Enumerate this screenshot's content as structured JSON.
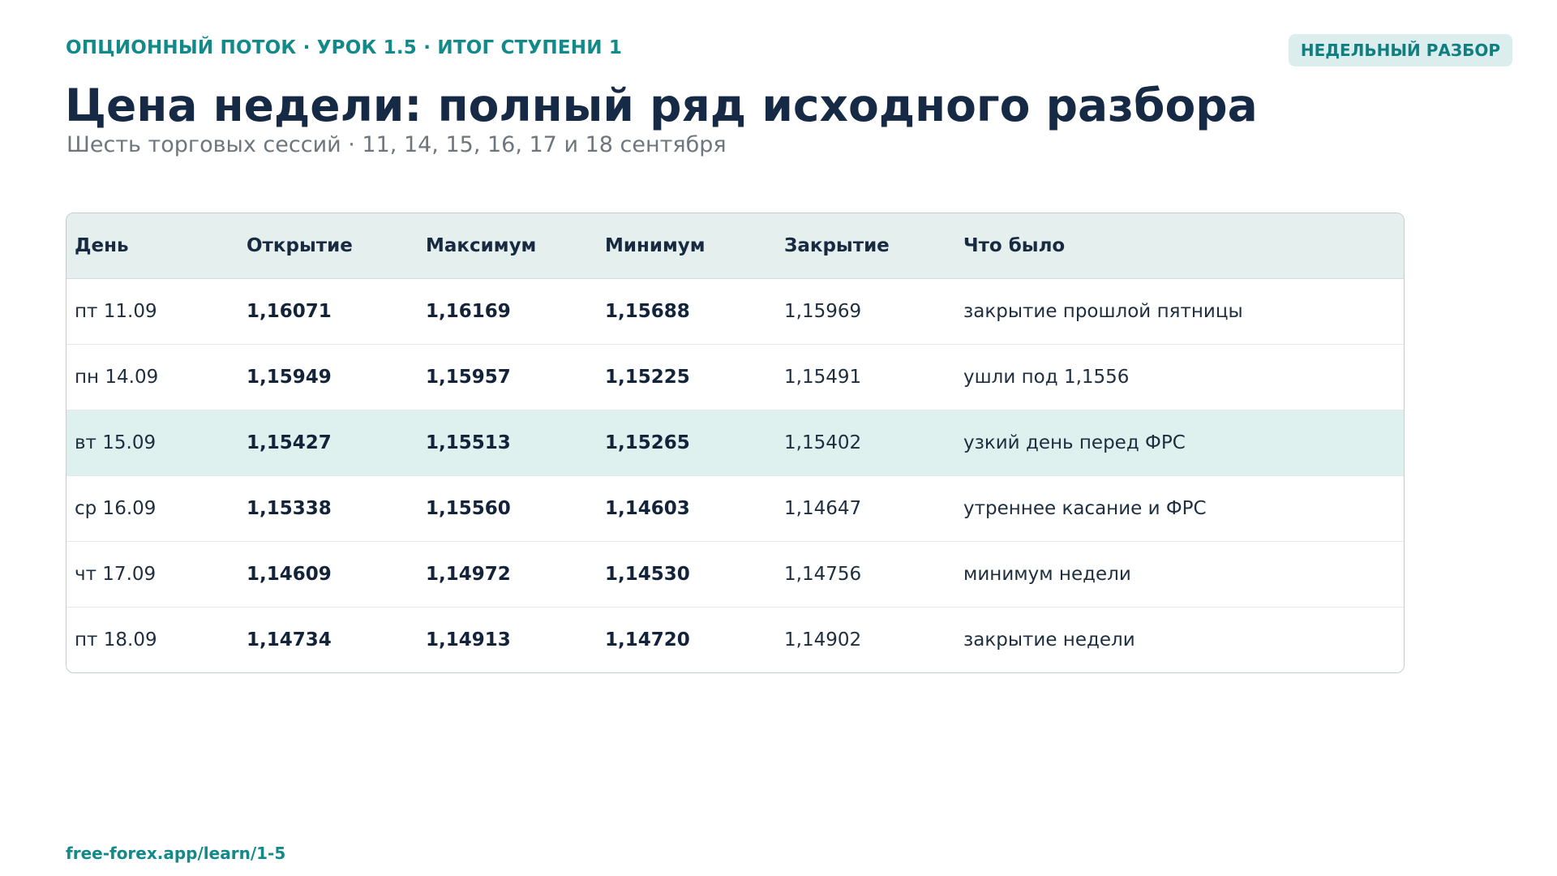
{
  "header": {
    "kicker": "ОПЦИОННЫЙ ПОТОК · УРОК 1.5 · ИТОГ СТУПЕНИ 1",
    "badge": "НЕДЕЛЬНЫЙ РАЗБОР",
    "title": "Цена недели: полный ряд исходного разбора",
    "subtitle": "Шесть торговых сессий · 11, 14, 15, 16, 17 и 18 сентября"
  },
  "table": {
    "columns": [
      "День",
      "Открытие",
      "Максимум",
      "Минимум",
      "Закрытие",
      "Что было"
    ],
    "rows": [
      {
        "day": "пт 11.09",
        "open": "1,16071",
        "high": "1,16169",
        "low": "1,15688",
        "close": "1,15969",
        "note": "закрытие прошлой пятницы"
      },
      {
        "day": "пн 14.09",
        "open": "1,15949",
        "high": "1,15957",
        "low": "1,15225",
        "close": "1,15491",
        "note": "ушли под 1,1556"
      },
      {
        "day": "вт 15.09",
        "open": "1,15427",
        "high": "1,15513",
        "low": "1,15265",
        "close": "1,15402",
        "note": "узкий день перед ФРС"
      },
      {
        "day": "ср 16.09",
        "open": "1,15338",
        "high": "1,15560",
        "low": "1,14603",
        "close": "1,14647",
        "note": "утреннее касание и ФРС"
      },
      {
        "day": "чт 17.09",
        "open": "1,14609",
        "high": "1,14972",
        "low": "1,14530",
        "close": "1,14756",
        "note": "минимум недели"
      },
      {
        "day": "пт 18.09",
        "open": "1,14734",
        "high": "1,14913",
        "low": "1,14720",
        "close": "1,14902",
        "note": "закрытие недели"
      }
    ],
    "highlighted_row": 2
  },
  "footer": {
    "link": "free-forex.app/learn/1-5"
  },
  "colors": {
    "accent": "#138a8a",
    "title": "#172a45",
    "header_bg": "#e4efee",
    "highlight_bg": "#dff1ee"
  }
}
